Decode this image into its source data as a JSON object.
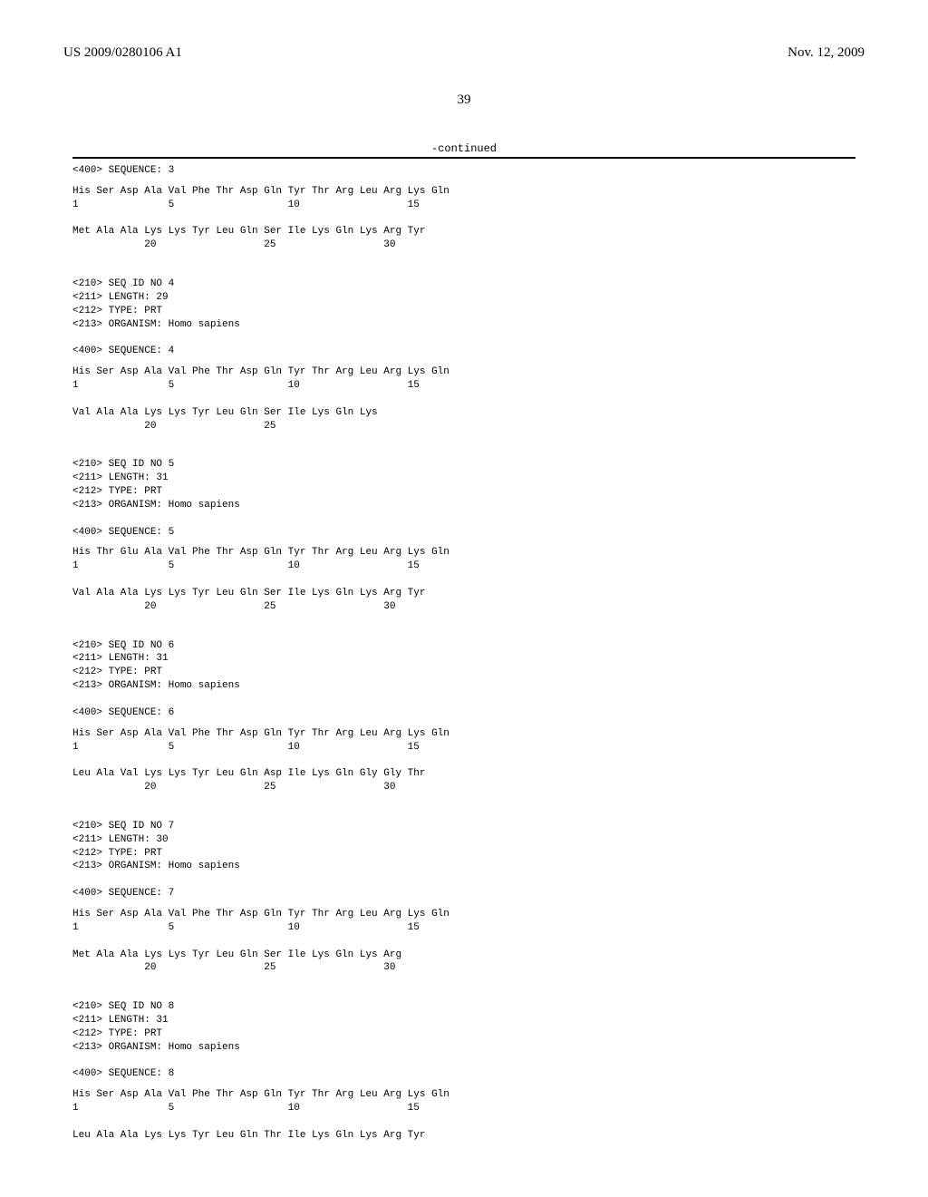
{
  "header": {
    "patent_number": "US 2009/0280106 A1",
    "date": "Nov. 12, 2009",
    "page_number": "39",
    "continued_label": "-continued"
  },
  "sequences": [
    {
      "header_lines": [
        "<400> SEQUENCE: 3"
      ],
      "body_lines": [
        "His Ser Asp Ala Val Phe Thr Asp Gln Tyr Thr Arg Leu Arg Lys Gln",
        "1               5                   10                  15",
        "",
        "Met Ala Ala Lys Lys Tyr Leu Gln Ser Ile Lys Gln Lys Arg Tyr",
        "            20                  25                  30"
      ]
    },
    {
      "header_lines": [
        "<210> SEQ ID NO 4",
        "<211> LENGTH: 29",
        "<212> TYPE: PRT",
        "<213> ORGANISM: Homo sapiens",
        "",
        "<400> SEQUENCE: 4"
      ],
      "body_lines": [
        "His Ser Asp Ala Val Phe Thr Asp Gln Tyr Thr Arg Leu Arg Lys Gln",
        "1               5                   10                  15",
        "",
        "Val Ala Ala Lys Lys Tyr Leu Gln Ser Ile Lys Gln Lys",
        "            20                  25"
      ]
    },
    {
      "header_lines": [
        "<210> SEQ ID NO 5",
        "<211> LENGTH: 31",
        "<212> TYPE: PRT",
        "<213> ORGANISM: Homo sapiens",
        "",
        "<400> SEQUENCE: 5"
      ],
      "body_lines": [
        "His Thr Glu Ala Val Phe Thr Asp Gln Tyr Thr Arg Leu Arg Lys Gln",
        "1               5                   10                  15",
        "",
        "Val Ala Ala Lys Lys Tyr Leu Gln Ser Ile Lys Gln Lys Arg Tyr",
        "            20                  25                  30"
      ]
    },
    {
      "header_lines": [
        "<210> SEQ ID NO 6",
        "<211> LENGTH: 31",
        "<212> TYPE: PRT",
        "<213> ORGANISM: Homo sapiens",
        "",
        "<400> SEQUENCE: 6"
      ],
      "body_lines": [
        "His Ser Asp Ala Val Phe Thr Asp Gln Tyr Thr Arg Leu Arg Lys Gln",
        "1               5                   10                  15",
        "",
        "Leu Ala Val Lys Lys Tyr Leu Gln Asp Ile Lys Gln Gly Gly Thr",
        "            20                  25                  30"
      ]
    },
    {
      "header_lines": [
        "<210> SEQ ID NO 7",
        "<211> LENGTH: 30",
        "<212> TYPE: PRT",
        "<213> ORGANISM: Homo sapiens",
        "",
        "<400> SEQUENCE: 7"
      ],
      "body_lines": [
        "His Ser Asp Ala Val Phe Thr Asp Gln Tyr Thr Arg Leu Arg Lys Gln",
        "1               5                   10                  15",
        "",
        "Met Ala Ala Lys Lys Tyr Leu Gln Ser Ile Lys Gln Lys Arg",
        "            20                  25                  30"
      ]
    },
    {
      "header_lines": [
        "<210> SEQ ID NO 8",
        "<211> LENGTH: 31",
        "<212> TYPE: PRT",
        "<213> ORGANISM: Homo sapiens",
        "",
        "<400> SEQUENCE: 8"
      ],
      "body_lines": [
        "His Ser Asp Ala Val Phe Thr Asp Gln Tyr Thr Arg Leu Arg Lys Gln",
        "1               5                   10                  15",
        "",
        "Leu Ala Ala Lys Lys Tyr Leu Gln Thr Ile Lys Gln Lys Arg Tyr"
      ]
    }
  ]
}
